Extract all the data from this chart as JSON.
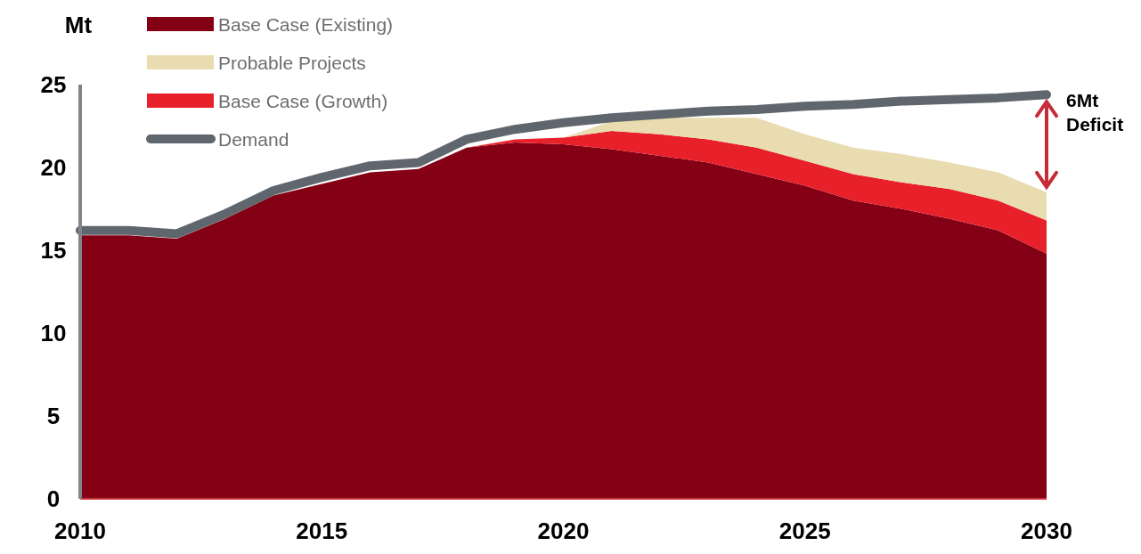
{
  "chart_data": {
    "type": "area",
    "stacked": true,
    "ylabel": "Mt",
    "x": [
      2010,
      2011,
      2012,
      2013,
      2014,
      2015,
      2016,
      2017,
      2018,
      2019,
      2020,
      2021,
      2022,
      2023,
      2024,
      2025,
      2026,
      2027,
      2028,
      2029,
      2030
    ],
    "series": [
      {
        "name": "Base Case (Existing)",
        "color": "#840014",
        "values": [
          15.9,
          15.9,
          15.7,
          16.9,
          18.3,
          19.0,
          19.7,
          19.9,
          21.2,
          21.5,
          21.4,
          21.1,
          20.7,
          20.3,
          19.6,
          18.9,
          18.0,
          17.5,
          16.9,
          16.2,
          14.8
        ]
      },
      {
        "name": "Base Case (Growth)",
        "color": "#e8202a",
        "values": [
          0,
          0,
          0,
          0,
          0,
          0,
          0,
          0,
          0,
          0.2,
          0.4,
          1.1,
          1.3,
          1.4,
          1.6,
          1.5,
          1.6,
          1.6,
          1.8,
          1.8,
          2.0
        ]
      },
      {
        "name": "Probable Projects",
        "color": "#e8dcb0",
        "values": [
          0,
          0,
          0,
          0,
          0,
          0,
          0,
          0,
          0,
          0,
          0,
          0.6,
          1.0,
          1.3,
          1.8,
          1.6,
          1.6,
          1.7,
          1.6,
          1.7,
          1.7
        ]
      },
      {
        "name": "Demand",
        "type": "line",
        "color": "#5f666d",
        "values": [
          16.2,
          16.2,
          16.0,
          17.2,
          18.6,
          19.4,
          20.1,
          20.3,
          21.7,
          22.3,
          22.7,
          23.0,
          23.2,
          23.4,
          23.5,
          23.7,
          23.8,
          24.0,
          24.1,
          24.2,
          24.4
        ]
      }
    ],
    "xlim": [
      2010,
      2030
    ],
    "xticks": [
      2010,
      2015,
      2020,
      2025,
      2030
    ],
    "ylim": [
      0,
      25
    ],
    "yticks": [
      0,
      5,
      10,
      15,
      20,
      25
    ],
    "legend": "top left",
    "grid": false,
    "annotations": [
      "6Mt Deficit"
    ]
  }
}
